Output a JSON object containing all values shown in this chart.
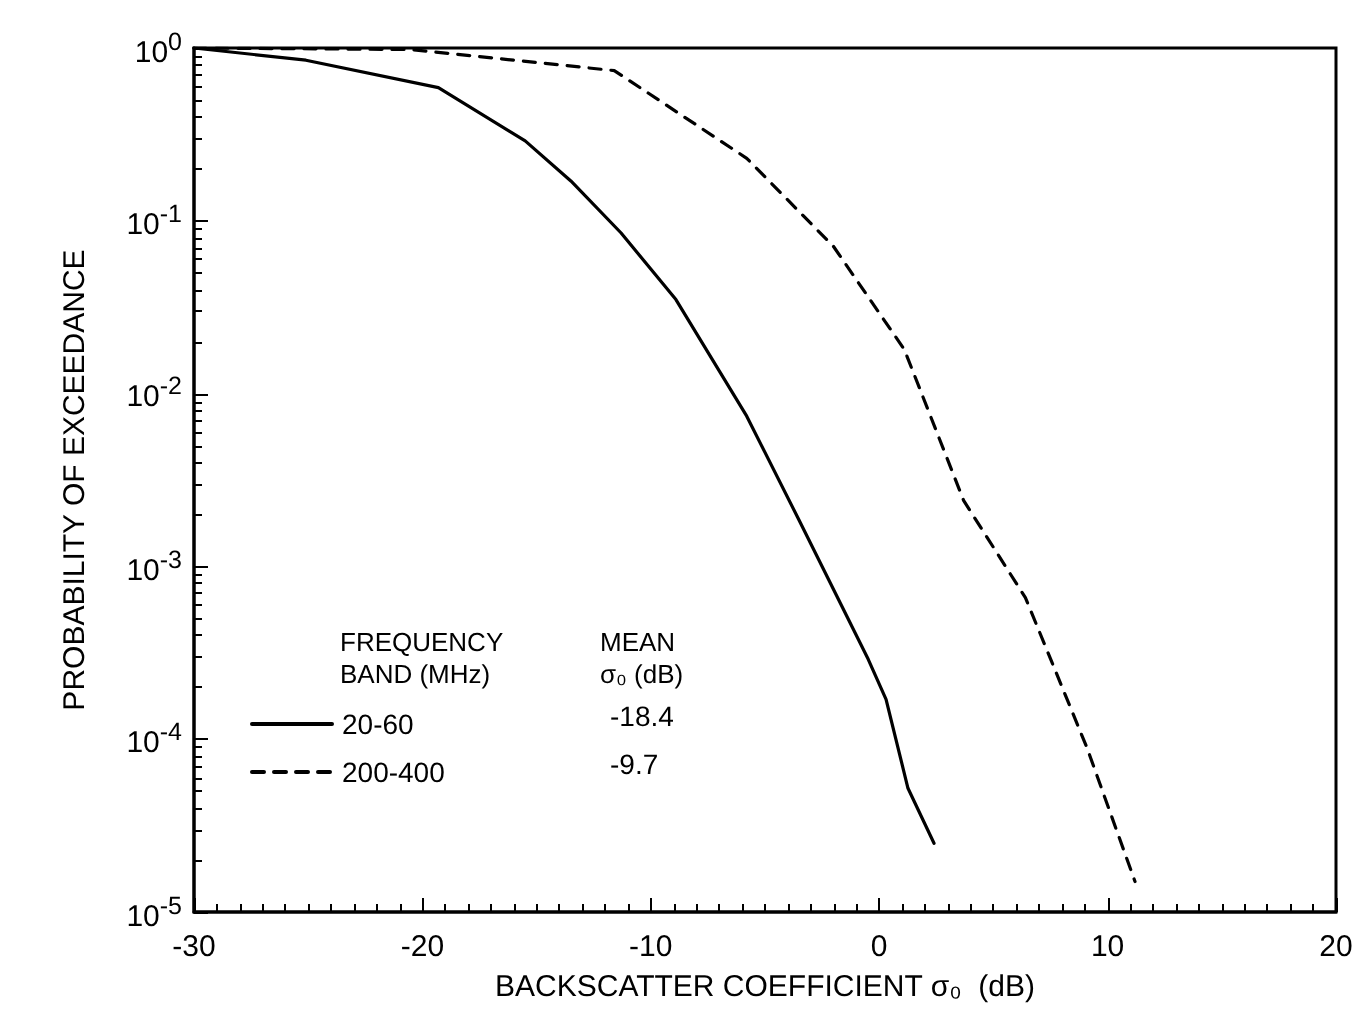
{
  "chart_data": {
    "type": "line",
    "xlabel": "BACKSCATTER COEFFICIENT σ₀  (dB)",
    "ylabel": "PROBABILITY OF EXCEEDANCE",
    "legend_title": "FREQUENCY BAND (MHz)",
    "annotations": [
      "MEAN σ₀ (dB)",
      "-18.4",
      "-9.7"
    ],
    "series": [
      {
        "name": "20-60",
        "color": "#000000",
        "line_style": "solid",
        "x": [
          -30,
          -25.1,
          -19.3,
          -15.5,
          -13.5,
          -11.3,
          -8.9,
          -5.8,
          -3.55,
          -0.48,
          0.3,
          1.26,
          2.4
        ],
        "values": [
          1.0,
          0.85,
          0.59,
          0.29,
          0.17,
          0.085,
          0.035,
          0.0074,
          0.0019,
          0.00029,
          0.00017,
          5.2e-05,
          2.5e-05
        ]
      },
      {
        "name": "200-400",
        "color": "#000000",
        "line_style": "dashed",
        "x": [
          -30,
          -20.5,
          -11.6,
          -5.8,
          -2,
          1.1,
          3.7,
          6.4,
          9.1,
          11.2
        ],
        "values": [
          1.0,
          0.98,
          0.74,
          0.23,
          0.071,
          0.018,
          0.0024,
          0.00066,
          8.9e-05,
          1.5e-05
        ]
      }
    ],
    "xlim": [
      -30,
      20
    ],
    "xticks": [
      -30,
      -20,
      -10,
      0,
      10,
      20
    ],
    "ylim": [
      1e-05,
      1
    ],
    "yticks": [
      {
        "value": 1,
        "label": "10$^{0}$"
      },
      {
        "value": 0.1,
        "label": "10$^{-1}$"
      },
      {
        "value": 0.01,
        "label": "10$^{-2}$"
      },
      {
        "value": 0.001,
        "label": "10$^{-3}$"
      },
      {
        "value": 0.0001,
        "label": "10$^{-4}$"
      },
      {
        "value": 1e-05,
        "label": "10$^{-5}$"
      }
    ],
    "log": "y",
    "grid": false,
    "legend": "left",
    "marker": "none"
  }
}
